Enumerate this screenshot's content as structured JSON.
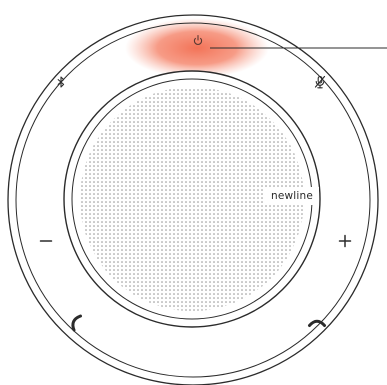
{
  "device": {
    "brand": "newline",
    "glow_color": "#f26c4f",
    "ring_color": "#2b2b2b",
    "grille_dot_color": "#8a8a8a"
  },
  "buttons": [
    {
      "name": "power-button",
      "icon": "power-icon"
    },
    {
      "name": "bluetooth-button",
      "icon": "bluetooth-icon"
    },
    {
      "name": "mic-mute-button",
      "icon": "microphone-muted-icon"
    },
    {
      "name": "volume-down-button",
      "icon": "minus-icon"
    },
    {
      "name": "volume-up-button",
      "icon": "plus-icon"
    },
    {
      "name": "answer-call-button",
      "icon": "phone-answer-icon"
    },
    {
      "name": "hang-up-button",
      "icon": "phone-hangup-icon"
    }
  ]
}
